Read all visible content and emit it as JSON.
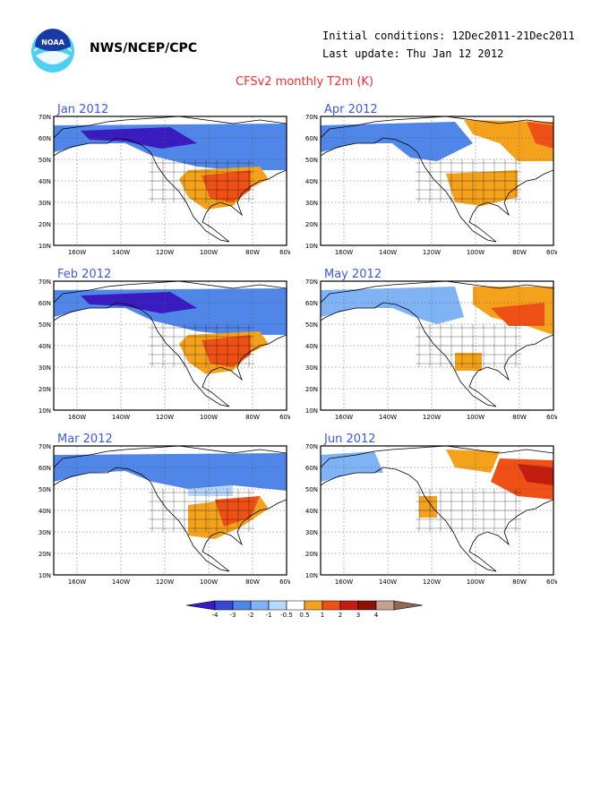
{
  "header": {
    "org": "NWS/NCEP/CPC",
    "initial_conditions": "Initial conditions: 12Dec2011-21Dec2011",
    "last_update": "Last update: Thu Jan 12 2012",
    "logo_text": "NOAA"
  },
  "title": "CFSv2 monthly T2m (K)",
  "axes": {
    "y_ticks": [
      "70N",
      "60N",
      "50N",
      "40N",
      "30N",
      "20N",
      "10N"
    ],
    "x_ticks": [
      "160W",
      "140W",
      "120W",
      "100W",
      "80W",
      "60W"
    ]
  },
  "panels": [
    {
      "label": "Jan 2012",
      "pattern": "cold-north-warm-se"
    },
    {
      "label": "Feb 2012",
      "pattern": "cold-north-warm-se"
    },
    {
      "label": "Mar 2012",
      "pattern": "cold-north-warm-east"
    },
    {
      "label": "Apr 2012",
      "pattern": "cold-west-warm-east"
    },
    {
      "label": "May 2012",
      "pattern": "cold-west-warm-ne"
    },
    {
      "label": "Jun 2012",
      "pattern": "warm-ne-sw"
    }
  ],
  "colorbar": {
    "labels": [
      "-4",
      "-3",
      "-2",
      "-1",
      "-0.5",
      "0.5",
      "1",
      "2",
      "3",
      "4"
    ],
    "colors": [
      "#3a1bbf",
      "#3b45d6",
      "#4f86e8",
      "#7fb3f5",
      "#b9d8fb",
      "#ffffff",
      "#f4a21c",
      "#ee5016",
      "#c31d10",
      "#8c1208",
      "#c8a090",
      "#8e6a55"
    ]
  }
}
